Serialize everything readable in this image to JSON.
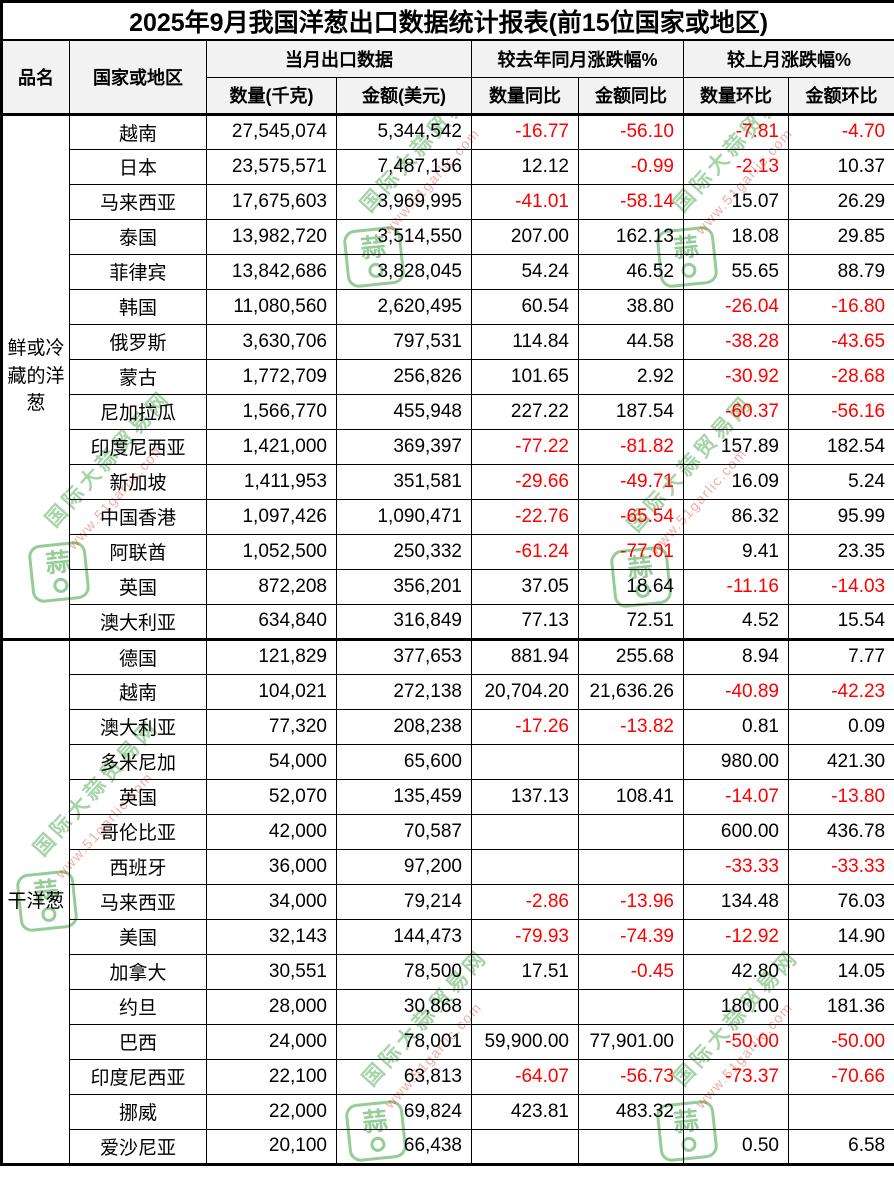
{
  "title": "2025年9月我国洋葱出口数据统计报表(前15位国家或地区)",
  "columns": {
    "product": "品名",
    "country": "国家或地区",
    "current_month_group": "当月出口数据",
    "yoy_group": "较去年同月涨跌幅%",
    "mom_group": "较上月涨跌幅%",
    "qty_kg": "数量(千克)",
    "amount_usd": "金额(美元)",
    "qty_yoy": "数量同比",
    "amount_yoy": "金额同比",
    "qty_mom": "数量环比",
    "amount_mom": "金额环比"
  },
  "groups": [
    {
      "product": "鲜或冷藏的洋葱",
      "rows": [
        [
          "越南",
          "27,545,074",
          "5,344,542",
          "-16.77",
          "-56.10",
          "-7.81",
          "-4.70"
        ],
        [
          "日本",
          "23,575,571",
          "7,487,156",
          "12.12",
          "-0.99",
          "-2.13",
          "10.37"
        ],
        [
          "马来西亚",
          "17,675,603",
          "3,969,995",
          "-41.01",
          "-58.14",
          "15.07",
          "26.29"
        ],
        [
          "泰国",
          "13,982,720",
          "3,514,550",
          "207.00",
          "162.13",
          "18.08",
          "29.85"
        ],
        [
          "菲律宾",
          "13,842,686",
          "3,828,045",
          "54.24",
          "46.52",
          "55.65",
          "88.79"
        ],
        [
          "韩国",
          "11,080,560",
          "2,620,495",
          "60.54",
          "38.80",
          "-26.04",
          "-16.80"
        ],
        [
          "俄罗斯",
          "3,630,706",
          "797,531",
          "114.84",
          "44.58",
          "-38.28",
          "-43.65"
        ],
        [
          "蒙古",
          "1,772,709",
          "256,826",
          "101.65",
          "2.92",
          "-30.92",
          "-28.68"
        ],
        [
          "尼加拉瓜",
          "1,566,770",
          "455,948",
          "227.22",
          "187.54",
          "-60.37",
          "-56.16"
        ],
        [
          "印度尼西亚",
          "1,421,000",
          "369,397",
          "-77.22",
          "-81.82",
          "157.89",
          "182.54"
        ],
        [
          "新加坡",
          "1,411,953",
          "351,581",
          "-29.66",
          "-49.71",
          "16.09",
          "5.24"
        ],
        [
          "中国香港",
          "1,097,426",
          "1,090,471",
          "-22.76",
          "-65.54",
          "86.32",
          "95.99"
        ],
        [
          "阿联酋",
          "1,052,500",
          "250,332",
          "-61.24",
          "-77.01",
          "9.41",
          "23.35"
        ],
        [
          "英国",
          "872,208",
          "356,201",
          "37.05",
          "18.64",
          "-11.16",
          "-14.03"
        ],
        [
          "澳大利亚",
          "634,840",
          "316,849",
          "77.13",
          "72.51",
          "4.52",
          "15.54"
        ]
      ]
    },
    {
      "product": "干洋葱",
      "rows": [
        [
          "德国",
          "121,829",
          "377,653",
          "881.94",
          "255.68",
          "8.94",
          "7.77"
        ],
        [
          "越南",
          "104,021",
          "272,138",
          "20,704.20",
          "21,636.26",
          "-40.89",
          "-42.23"
        ],
        [
          "澳大利亚",
          "77,320",
          "208,238",
          "-17.26",
          "-13.82",
          "0.81",
          "0.09"
        ],
        [
          "多米尼加",
          "54,000",
          "65,600",
          "",
          "",
          "980.00",
          "421.30"
        ],
        [
          "英国",
          "52,070",
          "135,459",
          "137.13",
          "108.41",
          "-14.07",
          "-13.80"
        ],
        [
          "哥伦比亚",
          "42,000",
          "70,587",
          "",
          "",
          "600.00",
          "436.78"
        ],
        [
          "西班牙",
          "36,000",
          "97,200",
          "",
          "",
          "-33.33",
          "-33.33"
        ],
        [
          "马来西亚",
          "34,000",
          "79,214",
          "-2.86",
          "-13.96",
          "134.48",
          "76.03"
        ],
        [
          "美国",
          "32,143",
          "144,473",
          "-79.93",
          "-74.39",
          "-12.92",
          "14.90"
        ],
        [
          "加拿大",
          "30,551",
          "78,500",
          "17.51",
          "-0.45",
          "42.80",
          "14.05"
        ],
        [
          "约旦",
          "28,000",
          "30,868",
          "",
          "",
          "180.00",
          "181.36"
        ],
        [
          "巴西",
          "24,000",
          "78,001",
          "59,900.00",
          "77,901.00",
          "-50.00",
          "-50.00"
        ],
        [
          "印度尼西亚",
          "22,100",
          "63,813",
          "-64.07",
          "-56.73",
          "-73.37",
          "-70.66"
        ],
        [
          "挪威",
          "22,000",
          "69,824",
          "423.81",
          "483.32",
          "",
          ""
        ],
        [
          "爱沙尼亚",
          "20,100",
          "66,438",
          "",
          "",
          "0.50",
          "6.58"
        ]
      ]
    }
  ],
  "watermark": {
    "site_name": "国际大蒜贸易网",
    "url": "www.51garlic.com",
    "logo_char": "蒜"
  },
  "colors": {
    "negative": "#ff0000",
    "positive": "#000000",
    "header_bg": "#f2f2f2",
    "border": "#000000",
    "watermark_green": "#2e9b33",
    "watermark_red": "#e6342a"
  }
}
